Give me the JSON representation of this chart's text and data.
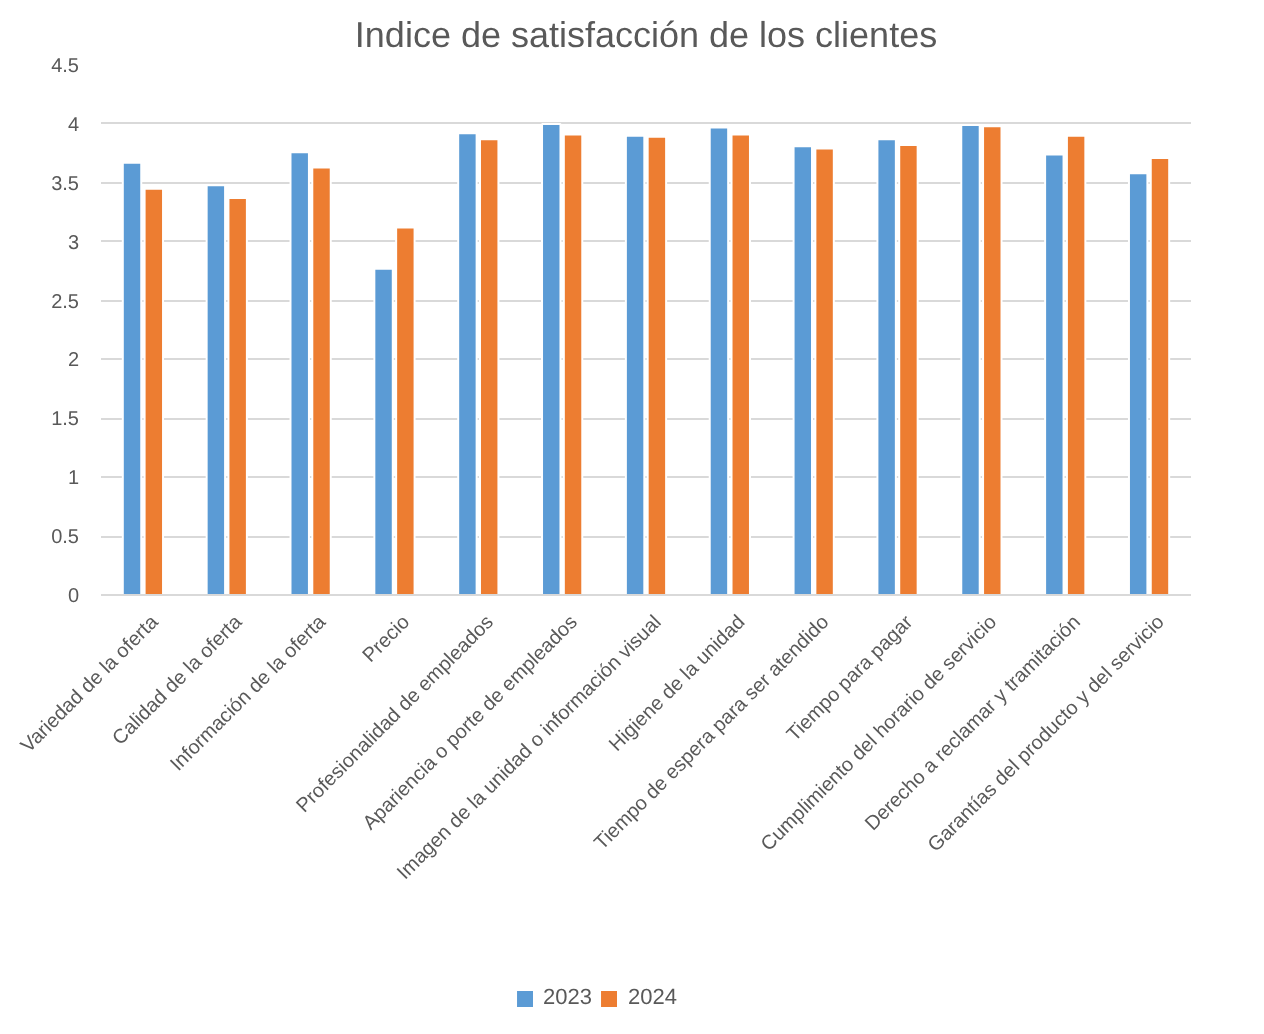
{
  "chart_data": {
    "type": "bar",
    "title": "Indice de satisfacción de los clientes",
    "categories": [
      "Variedad de la oferta",
      "Calidad de la oferta",
      "Información de la oferta",
      "Precio",
      "Profesionalidad de empleados",
      "Apariencia o porte de empleados",
      "Imagen de la unidad o información visual",
      "Higiene de la unidad",
      "Tiempo de espera para ser atendido",
      "Tiempo para pagar",
      "Cumplimiento del horario de servicio",
      "Derecho a reclamar y tramitación",
      "Garantías del producto y del servicio"
    ],
    "series": [
      {
        "name": "2023",
        "color": "#5b9bd5",
        "values": [
          3.67,
          3.48,
          3.76,
          2.77,
          3.92,
          4.0,
          3.9,
          3.97,
          3.81,
          3.87,
          3.99,
          3.74,
          3.58
        ]
      },
      {
        "name": "2024",
        "color": "#ed7d31",
        "values": [
          3.45,
          3.37,
          3.63,
          3.12,
          3.87,
          3.91,
          3.89,
          3.91,
          3.79,
          3.82,
          3.98,
          3.9,
          3.71
        ]
      }
    ],
    "ylim": [
      0,
      4.5
    ],
    "yticks": [
      0,
      0.5,
      1,
      1.5,
      2,
      2.5,
      3,
      3.5,
      4,
      4.5
    ],
    "grid": "y",
    "legend": "bottom"
  }
}
